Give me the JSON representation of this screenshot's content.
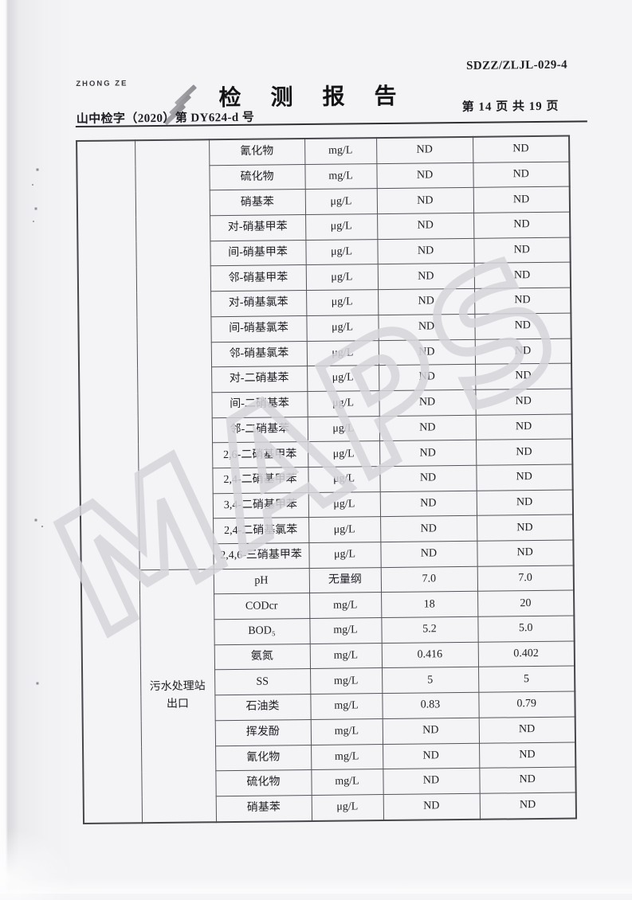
{
  "page": {
    "logo_caption": "ZHONG ZE",
    "doc_code": "SDZZ/ZLJL-029-4",
    "title": "检 测 报 告",
    "report_no": "山中检字（2020）第 DY624-d 号",
    "page_info": "第 14 页  共 19 页",
    "watermark": "MAPS"
  },
  "table": {
    "sections": [
      {
        "group_label_lines": [],
        "rows": [
          {
            "param": "氰化物",
            "unit": "mg/L",
            "v1": "ND",
            "v2": "ND"
          },
          {
            "param": "硫化物",
            "unit": "mg/L",
            "v1": "ND",
            "v2": "ND"
          },
          {
            "param": "硝基苯",
            "unit": "μg/L",
            "v1": "ND",
            "v2": "ND"
          },
          {
            "param": "对-硝基甲苯",
            "unit": "μg/L",
            "v1": "ND",
            "v2": "ND"
          },
          {
            "param": "间-硝基甲苯",
            "unit": "μg/L",
            "v1": "ND",
            "v2": "ND"
          },
          {
            "param": "邻-硝基甲苯",
            "unit": "μg/L",
            "v1": "ND",
            "v2": "ND"
          },
          {
            "param": "对-硝基氯苯",
            "unit": "μg/L",
            "v1": "ND",
            "v2": "ND"
          },
          {
            "param": "间-硝基氯苯",
            "unit": "μg/L",
            "v1": "ND",
            "v2": "ND"
          },
          {
            "param": "邻-硝基氯苯",
            "unit": "μg/L",
            "v1": "ND",
            "v2": "ND"
          },
          {
            "param": "对-二硝基苯",
            "unit": "μg/L",
            "v1": "ND",
            "v2": "ND"
          },
          {
            "param": "间-二硝基苯",
            "unit": "μg/L",
            "v1": "ND",
            "v2": "ND"
          },
          {
            "param": "邻-二硝基苯",
            "unit": "μg/L",
            "v1": "ND",
            "v2": "ND"
          },
          {
            "param": "2,6-二硝基甲苯",
            "unit": "μg/L",
            "v1": "ND",
            "v2": "ND"
          },
          {
            "param": "2,4-二硝基甲苯",
            "unit": "μg/L",
            "v1": "ND",
            "v2": "ND"
          },
          {
            "param": "3,4-二硝基甲苯",
            "unit": "μg/L",
            "v1": "ND",
            "v2": "ND"
          },
          {
            "param": "2,4-二硝基氯苯",
            "unit": "μg/L",
            "v1": "ND",
            "v2": "ND"
          },
          {
            "param": "2,4,6-三硝基甲苯",
            "unit": "μg/L",
            "v1": "ND",
            "v2": "ND"
          }
        ]
      },
      {
        "group_label_lines": [
          "污水处理站",
          "出口"
        ],
        "rows": [
          {
            "param": "pH",
            "unit": "无量纲",
            "v1": "7.0",
            "v2": "7.0"
          },
          {
            "param": "CODcr",
            "unit": "mg/L",
            "v1": "18",
            "v2": "20"
          },
          {
            "param": "BOD₅",
            "unit": "mg/L",
            "v1": "5.2",
            "v2": "5.0"
          },
          {
            "param": "氨氮",
            "unit": "mg/L",
            "v1": "0.416",
            "v2": "0.402"
          },
          {
            "param": "SS",
            "unit": "mg/L",
            "v1": "5",
            "v2": "5"
          },
          {
            "param": "石油类",
            "unit": "mg/L",
            "v1": "0.83",
            "v2": "0.79"
          },
          {
            "param": "挥发酚",
            "unit": "mg/L",
            "v1": "ND",
            "v2": "ND"
          },
          {
            "param": "氰化物",
            "unit": "mg/L",
            "v1": "ND",
            "v2": "ND"
          },
          {
            "param": "硫化物",
            "unit": "mg/L",
            "v1": "ND",
            "v2": "ND"
          },
          {
            "param": "硝基苯",
            "unit": "μg/L",
            "v1": "ND",
            "v2": "ND"
          }
        ]
      }
    ]
  }
}
